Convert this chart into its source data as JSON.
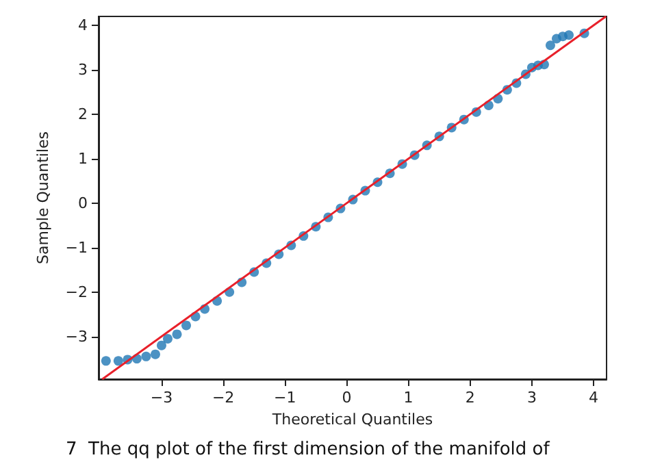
{
  "chart_data": {
    "type": "scatter",
    "xlabel": "Theoretical Quantiles",
    "ylabel": "Sample Quantiles",
    "annotations": [
      "7  The qq plot of the first dimension of the manifold of"
    ],
    "xlim": [
      -4.02,
      4.21
    ],
    "ylim": [
      -3.96,
      4.2
    ],
    "xticks": [
      {
        "value": -3,
        "label": "−3"
      },
      {
        "value": -2,
        "label": "−2"
      },
      {
        "value": -1,
        "label": "−1"
      },
      0,
      1,
      2,
      3,
      4
    ],
    "yticks": [
      {
        "value": -3,
        "label": "−3"
      },
      {
        "value": -2,
        "label": "−2"
      },
      {
        "value": -1,
        "label": "−1"
      },
      0,
      1,
      2,
      3,
      4
    ],
    "grid": false,
    "marker": "circle",
    "series": [
      {
        "type": "scatter",
        "color": "#1f77b4",
        "x": [
          -3.9,
          -3.7,
          -3.55,
          -3.4,
          -3.25,
          -3.1,
          -3.0,
          -2.9,
          -2.75,
          -2.6,
          -2.45,
          -2.3,
          -2.1,
          -1.9,
          -1.7,
          -1.5,
          -1.3,
          -1.1,
          -0.9,
          -0.7,
          -0.5,
          -0.3,
          -0.1,
          0.1,
          0.3,
          0.5,
          0.7,
          0.9,
          1.1,
          1.3,
          1.5,
          1.7,
          1.9,
          2.1,
          2.3,
          2.45,
          2.6,
          2.75,
          2.9,
          3.0,
          3.1,
          3.2,
          3.3,
          3.4,
          3.5,
          3.6,
          3.85
        ],
        "values": [
          -3.55,
          -3.55,
          -3.52,
          -3.5,
          -3.45,
          -3.4,
          -3.2,
          -3.05,
          -2.95,
          -2.75,
          -2.55,
          -2.38,
          -2.2,
          -2.0,
          -1.78,
          -1.55,
          -1.35,
          -1.15,
          -0.95,
          -0.74,
          -0.53,
          -0.32,
          -0.12,
          0.08,
          0.28,
          0.47,
          0.67,
          0.88,
          1.08,
          1.3,
          1.5,
          1.7,
          1.88,
          2.05,
          2.2,
          2.35,
          2.55,
          2.7,
          2.9,
          3.05,
          3.1,
          3.12,
          3.55,
          3.7,
          3.75,
          3.78,
          3.82
        ]
      },
      {
        "type": "line",
        "color": "#e8202a",
        "marker": "none",
        "x": [
          -3.96,
          4.2
        ],
        "values": [
          -3.96,
          4.2
        ]
      }
    ]
  }
}
